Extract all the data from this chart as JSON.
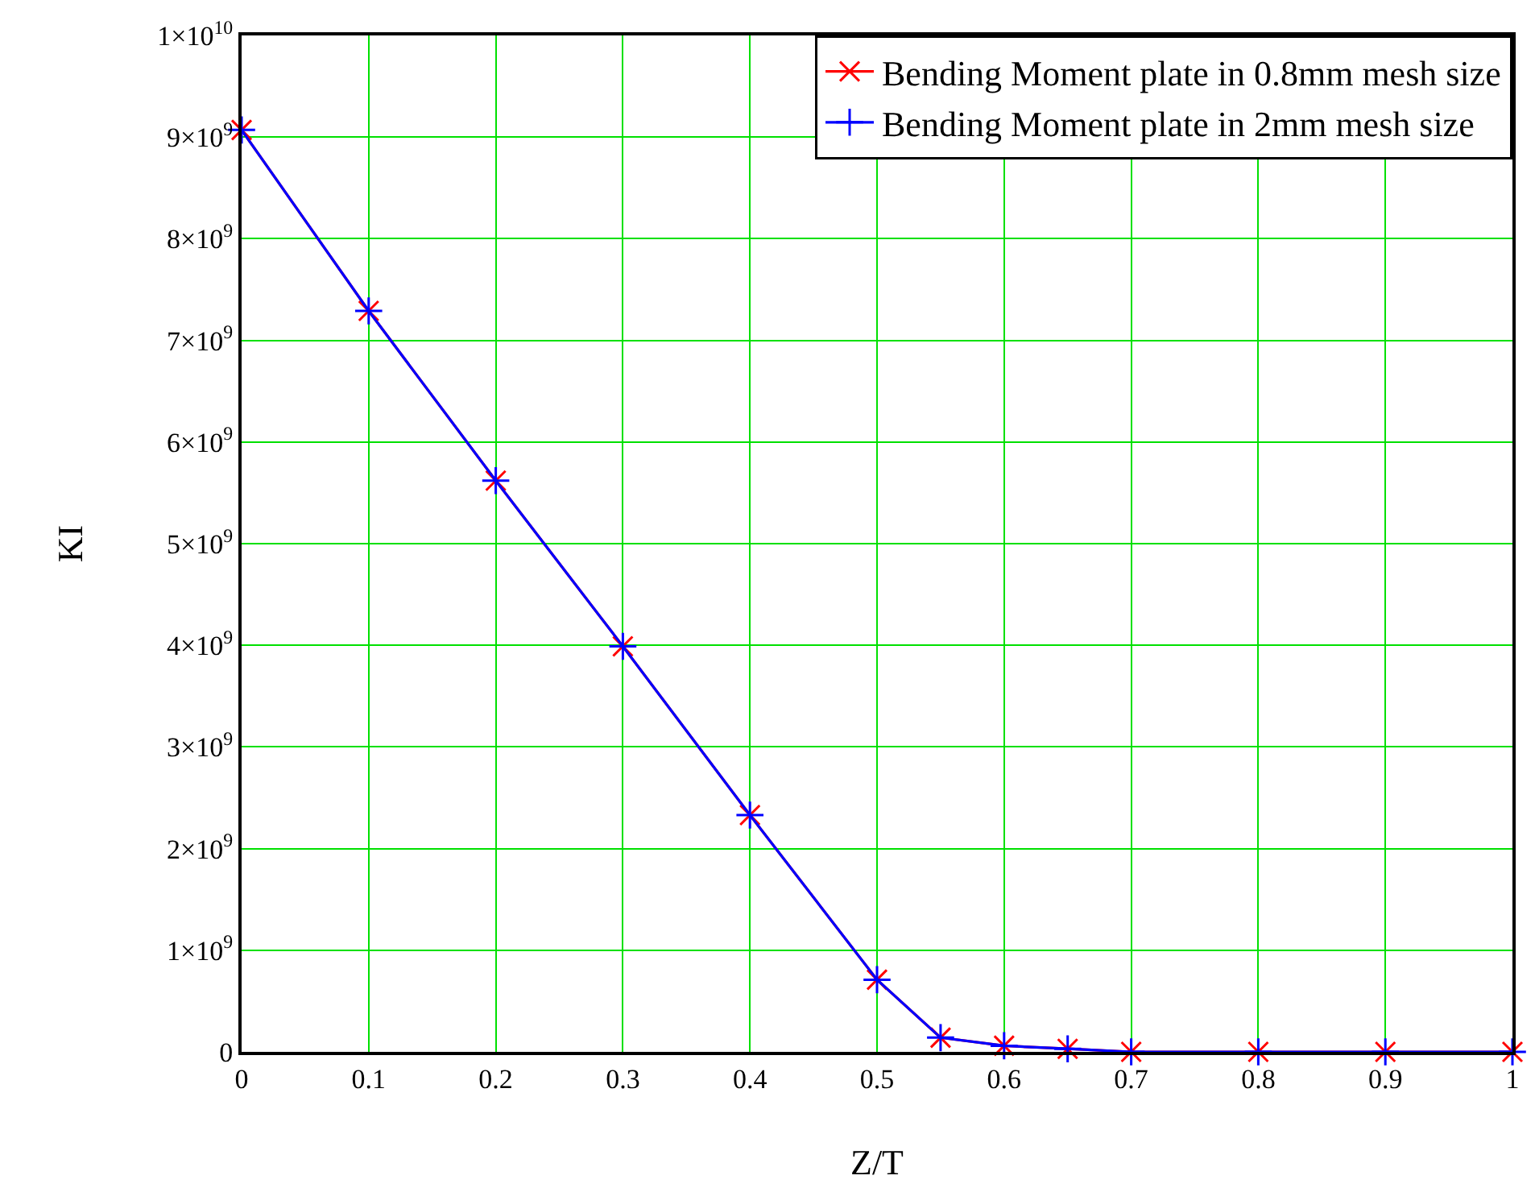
{
  "chart_data": {
    "type": "line",
    "xlabel": "Z/T",
    "ylabel": "KI",
    "x": [
      0,
      0.1,
      0.2,
      0.3,
      0.4,
      0.5,
      0.55,
      0.6,
      0.65,
      0.7,
      0.8,
      0.9,
      1
    ],
    "series": [
      {
        "name": "Bending Moment plate in 0.8mm mesh size",
        "color": "#ff0000",
        "marker": "cross",
        "values": [
          9070000000.0,
          7290000000.0,
          5620000000.0,
          3990000000.0,
          2330000000.0,
          710000000.0,
          140000000.0,
          60000000.0,
          30000000.0,
          0,
          0,
          0,
          0
        ]
      },
      {
        "name": "Bending Moment plate in 2mm mesh size",
        "color": "#0000ff",
        "marker": "plus",
        "values": [
          9070000000.0,
          7290000000.0,
          5620000000.0,
          3990000000.0,
          2330000000.0,
          710000000.0,
          140000000.0,
          60000000.0,
          30000000.0,
          0,
          0,
          0,
          0
        ]
      }
    ],
    "xlim": [
      0,
      1
    ],
    "xticks": [
      0,
      0.1,
      0.2,
      0.3,
      0.4,
      0.5,
      0.6,
      0.7,
      0.8,
      0.9,
      1
    ],
    "ylim": [
      0,
      10000000000.0
    ],
    "yticks": [
      {
        "value": 0,
        "label": "0"
      },
      {
        "value": 1000000000.0,
        "label": "1×10$^{9}$"
      },
      {
        "value": 2000000000.0,
        "label": "2×10$^{9}$"
      },
      {
        "value": 3000000000.0,
        "label": "3×10$^{9}$"
      },
      {
        "value": 4000000000.0,
        "label": "4×10$^{9}$"
      },
      {
        "value": 5000000000.0,
        "label": "5×10$^{9}$"
      },
      {
        "value": 6000000000.0,
        "label": "6×10$^{9}$"
      },
      {
        "value": 7000000000.0,
        "label": "7×10$^{9}$"
      },
      {
        "value": 8000000000.0,
        "label": "8×10$^{9}$"
      },
      {
        "value": 9000000000.0,
        "label": "9×10$^{9}$"
      },
      {
        "value": 10000000000.0,
        "label": "1×10$^{10}$"
      }
    ],
    "grid": true,
    "legend": "top right",
    "line_style": "solid"
  }
}
